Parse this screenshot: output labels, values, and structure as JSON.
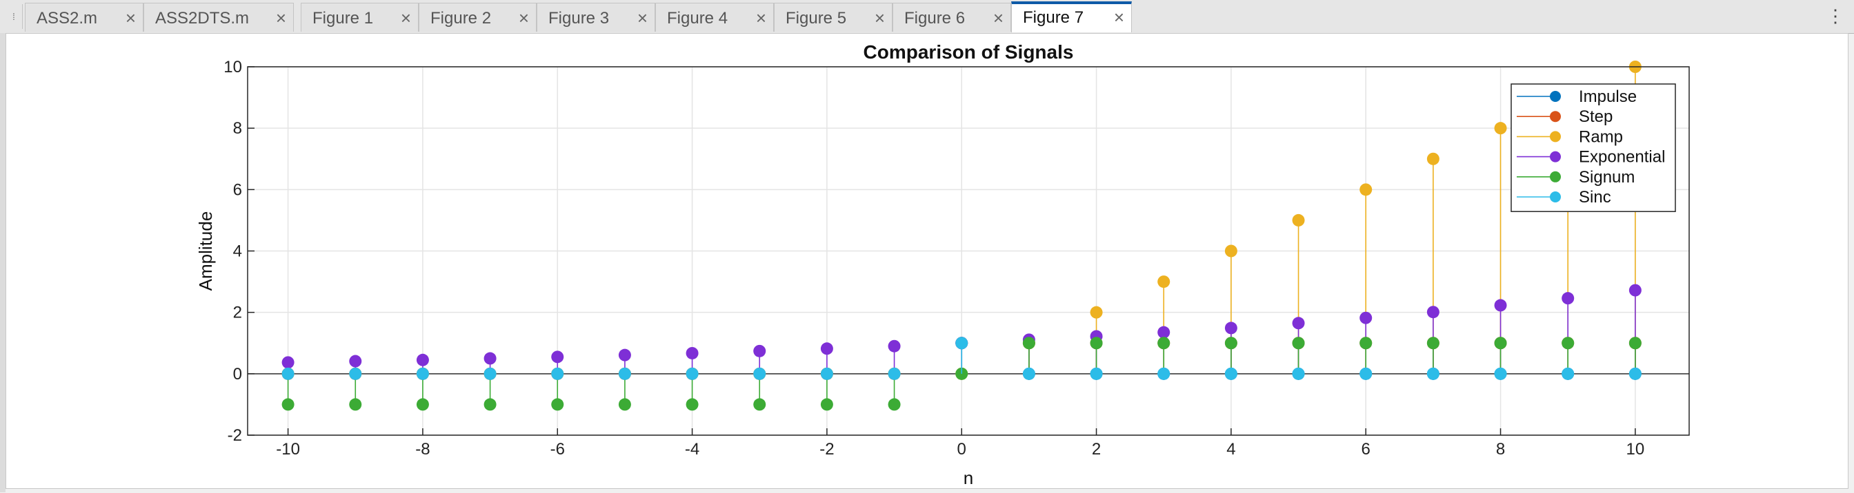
{
  "tabs": [
    {
      "label": "ASS2.m",
      "active": false
    },
    {
      "label": "ASS2DTS.m",
      "active": false
    },
    {
      "label": "Figure 1",
      "active": false
    },
    {
      "label": "Figure 2",
      "active": false
    },
    {
      "label": "Figure 3",
      "active": false
    },
    {
      "label": "Figure 4",
      "active": false
    },
    {
      "label": "Figure 5",
      "active": false
    },
    {
      "label": "Figure 6",
      "active": false
    },
    {
      "label": "Figure 7",
      "active": true
    }
  ],
  "tab_close_glyph": "×",
  "colors": {
    "accent": "#0e5aa7"
  },
  "chart_data": {
    "type": "stem",
    "title": "Comparison of Signals",
    "xlabel": "n",
    "ylabel": "Amplitude",
    "xlim": [
      -10.6,
      10.8
    ],
    "ylim": [
      -2,
      10
    ],
    "xticks": [
      -10,
      -8,
      -6,
      -4,
      -2,
      0,
      2,
      4,
      6,
      8,
      10
    ],
    "yticks": [
      -2,
      0,
      2,
      4,
      6,
      8,
      10
    ],
    "grid": true,
    "legend_position": "top-right",
    "x": [
      -10,
      -9,
      -8,
      -7,
      -6,
      -5,
      -4,
      -3,
      -2,
      -1,
      0,
      1,
      2,
      3,
      4,
      5,
      6,
      7,
      8,
      9,
      10
    ],
    "series": [
      {
        "name": "Impulse",
        "color": "#0072bd",
        "values": [
          0,
          0,
          0,
          0,
          0,
          0,
          0,
          0,
          0,
          0,
          1,
          0,
          0,
          0,
          0,
          0,
          0,
          0,
          0,
          0,
          0
        ]
      },
      {
        "name": "Step",
        "color": "#d95319",
        "values": [
          0,
          0,
          0,
          0,
          0,
          0,
          0,
          0,
          0,
          0,
          1,
          1,
          1,
          1,
          1,
          1,
          1,
          1,
          1,
          1,
          1
        ]
      },
      {
        "name": "Ramp",
        "color": "#edb120",
        "values": [
          0,
          0,
          0,
          0,
          0,
          0,
          0,
          0,
          0,
          0,
          0,
          1,
          2,
          3,
          4,
          5,
          6,
          7,
          8,
          9,
          10
        ]
      },
      {
        "name": "Exponential",
        "color": "#7e2fd6",
        "values": [
          0.37,
          0.41,
          0.45,
          0.5,
          0.55,
          0.61,
          0.67,
          0.74,
          0.82,
          0.9,
          1.0,
          1.11,
          1.22,
          1.35,
          1.49,
          1.65,
          1.82,
          2.01,
          2.23,
          2.46,
          2.72
        ]
      },
      {
        "name": "Signum",
        "color": "#3cab35",
        "values": [
          -1,
          -1,
          -1,
          -1,
          -1,
          -1,
          -1,
          -1,
          -1,
          -1,
          0,
          1,
          1,
          1,
          1,
          1,
          1,
          1,
          1,
          1,
          1
        ]
      },
      {
        "name": "Sinc",
        "color": "#2cbce8",
        "values": [
          0,
          0,
          0,
          0,
          0,
          0,
          0,
          0,
          0,
          0,
          1,
          0,
          0,
          0,
          0,
          0,
          0,
          0,
          0,
          0,
          0
        ]
      }
    ]
  }
}
